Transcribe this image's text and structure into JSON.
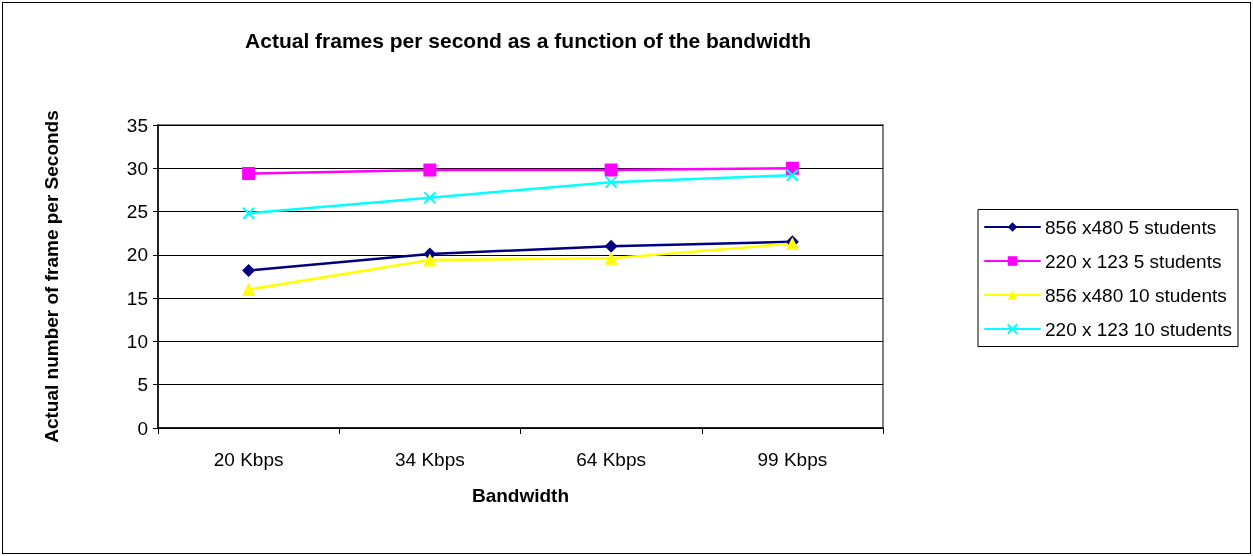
{
  "chart_data": {
    "type": "line",
    "title": "Actual frames per second as a function of the bandwidth",
    "xlabel": "Bandwidth",
    "ylabel": "Actual number of frame per Seconds",
    "categories": [
      "20 Kbps",
      "34 Kbps",
      "64 Kbps",
      "99 Kbps"
    ],
    "series": [
      {
        "name": "856 x480 5 students",
        "color": "#000080",
        "marker": "diamond",
        "values": [
          18.2,
          20.1,
          21,
          21.5
        ]
      },
      {
        "name": "220 x 123 5 students",
        "color": "#ff00ff",
        "marker": "square",
        "values": [
          29.4,
          29.8,
          29.8,
          30
        ]
      },
      {
        "name": "856 x480 10 students",
        "color": "#ffff00",
        "marker": "triangle",
        "values": [
          16,
          19.4,
          19.6,
          21.3
        ]
      },
      {
        "name": "220 x 123 10 students",
        "color": "#00ffff",
        "marker": "cross",
        "values": [
          24.8,
          26.6,
          28.4,
          29.2
        ]
      }
    ],
    "ylim": [
      0,
      35
    ],
    "yticks": [
      0,
      5,
      10,
      15,
      20,
      25,
      30,
      35
    ],
    "grid": "y",
    "legend": "right",
    "line_style": "solid"
  }
}
